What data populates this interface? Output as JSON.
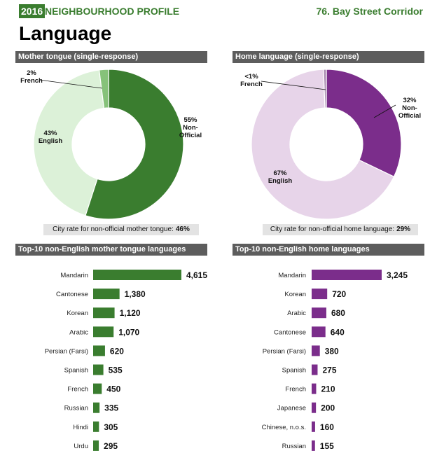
{
  "header": {
    "year": "2016",
    "title": "NEIGHBOURHOOD PROFILE",
    "neighbourhood": "76. Bay Street Corridor"
  },
  "section_title": "Language",
  "panels": {
    "mother_tongue_title": "Mother tongue (single-response)",
    "home_language_title": "Home language (single-response)",
    "top_mother_title": "Top-10 non-English mother tongue languages",
    "top_home_title": "Top-10 non-English home languages"
  },
  "rates": {
    "mother_label": "City rate for non-official mother tongue:",
    "mother_value": "46%",
    "home_label": "City rate for non-official home language:",
    "home_value": "29%"
  },
  "colors": {
    "green_dark": "#3a7d2f",
    "green_mid": "#86c27a",
    "green_light": "#dcf1d8",
    "purple_dark": "#7b2d8b",
    "purple_mid": "#a98bb0",
    "purple_light": "#e7d4e9",
    "bar_header": "#5d5d5d"
  },
  "chart_data": [
    {
      "type": "pie",
      "title": "Mother tongue (single-response)",
      "donut": true,
      "slices": [
        {
          "name": "Non-Official",
          "value": 55,
          "label": [
            "55%",
            "Non-",
            "Official"
          ]
        },
        {
          "name": "English",
          "value": 43,
          "label": [
            "43%",
            "English"
          ]
        },
        {
          "name": "French",
          "value": 2,
          "label": [
            "2%",
            "French"
          ]
        }
      ]
    },
    {
      "type": "pie",
      "title": "Home language (single-response)",
      "donut": true,
      "slices": [
        {
          "name": "Non-Official",
          "value": 32,
          "label": [
            "32%",
            "Non-",
            "Official"
          ]
        },
        {
          "name": "English",
          "value": 67,
          "label": [
            "67%",
            "English"
          ]
        },
        {
          "name": "French",
          "value": 0.6,
          "label": [
            "<1%",
            "French"
          ]
        }
      ]
    },
    {
      "type": "bar",
      "orientation": "horizontal",
      "title": "Top-10 non-English mother tongue languages",
      "categories": [
        "Mandarin",
        "Cantonese",
        "Korean",
        "Arabic",
        "Persian (Farsi)",
        "Spanish",
        "French",
        "Russian",
        "Hindi",
        "Urdu"
      ],
      "values": [
        4615,
        1380,
        1120,
        1070,
        620,
        535,
        450,
        335,
        305,
        295
      ],
      "labels": [
        "4,615",
        "1,380",
        "1,120",
        "1,070",
        "620",
        "535",
        "450",
        "335",
        "305",
        "295"
      ]
    },
    {
      "type": "bar",
      "orientation": "horizontal",
      "title": "Top-10 non-English home languages",
      "categories": [
        "Mandarin",
        "Korean",
        "Arabic",
        "Cantonese",
        "Persian (Farsi)",
        "Spanish",
        "French",
        "Japanese",
        "Chinese, n.o.s.",
        "Russian"
      ],
      "values": [
        3245,
        720,
        680,
        640,
        380,
        275,
        210,
        200,
        160,
        155
      ],
      "labels": [
        "3,245",
        "720",
        "680",
        "640",
        "380",
        "275",
        "210",
        "200",
        "160",
        "155"
      ]
    }
  ]
}
